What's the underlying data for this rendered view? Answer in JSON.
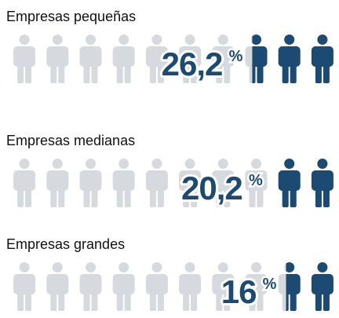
{
  "chart_data": {
    "type": "pictogram",
    "categories": [
      "Empresas pequeñas",
      "Empresas medianas",
      "Empresas grandes"
    ],
    "values": [
      26.2,
      20.2,
      16
    ],
    "value_labels": [
      "26,2",
      "20,2",
      "16"
    ],
    "unit": "%",
    "color": "#1b4a73",
    "background_color": "#d6dadf"
  }
}
